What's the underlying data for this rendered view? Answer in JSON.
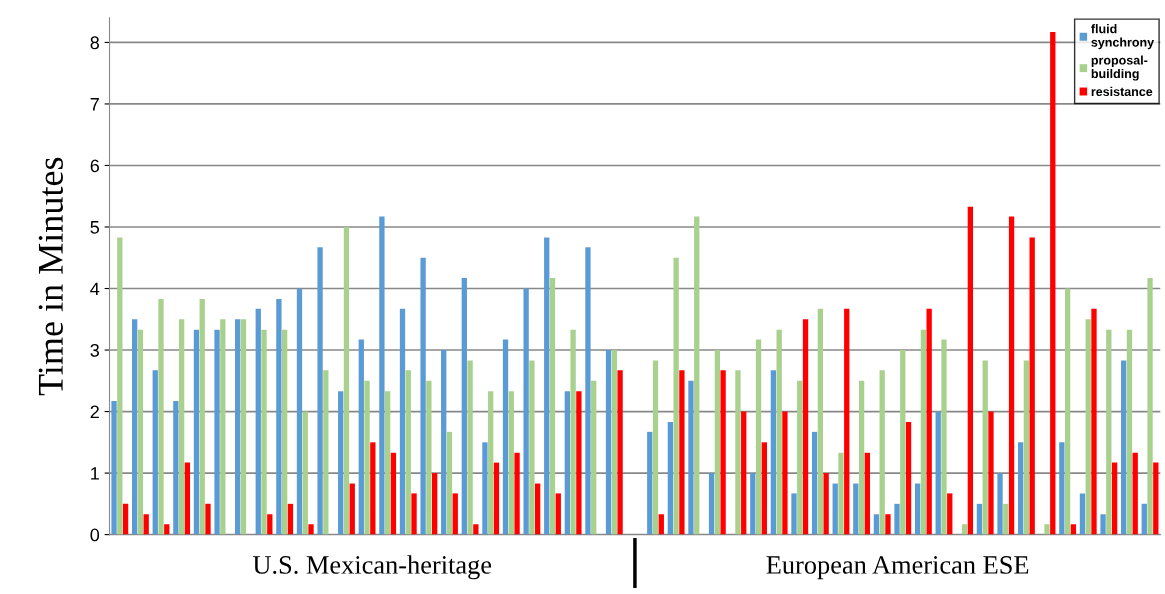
{
  "chart_data": {
    "type": "bar",
    "ylabel": "Time in Minutes",
    "categories": [
      null,
      null,
      null,
      null,
      null,
      null,
      null,
      null,
      null,
      null,
      null,
      null,
      null,
      null,
      null,
      null,
      null,
      null,
      null,
      null,
      null,
      null,
      null,
      null,
      null,
      null,
      null,
      null,
      null,
      null,
      null,
      null,
      null,
      null,
      null,
      null,
      null,
      null,
      null,
      null,
      null,
      null,
      null,
      null,
      null,
      null,
      null,
      null,
      null,
      null,
      null
    ],
    "series": [
      {
        "name": "fluid\nsynchrony",
        "color": "#5b9bd5",
        "values": [
          2.17,
          3.5,
          2.67,
          2.17,
          3.33,
          3.33,
          3.5,
          3.67,
          3.83,
          4.0,
          4.67,
          2.33,
          3.17,
          5.17,
          3.67,
          4.5,
          3.0,
          4.17,
          1.5,
          3.17,
          4.0,
          4.83,
          2.33,
          4.67,
          3.0,
          null,
          1.67,
          1.83,
          2.5,
          1.0,
          0,
          1.0,
          2.67,
          0.67,
          1.67,
          0.83,
          0.83,
          0.33,
          0.5,
          0.83,
          2.0,
          0,
          0.5,
          1.0,
          1.5,
          0,
          1.5,
          0.67,
          0.33,
          2.83,
          0.5
        ]
      },
      {
        "name": "proposal-\nbuilding",
        "color": "#a9d18e",
        "values": [
          4.83,
          3.33,
          3.83,
          3.5,
          3.83,
          3.5,
          3.5,
          3.33,
          3.33,
          2.0,
          2.67,
          5.0,
          2.5,
          2.33,
          2.67,
          2.5,
          1.67,
          2.83,
          2.33,
          2.33,
          2.83,
          4.17,
          3.33,
          2.5,
          3.0,
          null,
          2.83,
          4.5,
          5.17,
          3.0,
          2.67,
          3.17,
          3.33,
          2.5,
          3.67,
          1.33,
          2.5,
          2.67,
          3.0,
          3.33,
          3.17,
          0.17,
          2.83,
          0.5,
          2.83,
          0.17,
          4.0,
          3.5,
          3.33,
          3.33,
          4.17
        ]
      },
      {
        "name": "resistance",
        "color": "#ff0000",
        "values": [
          0.5,
          0.33,
          0.17,
          1.17,
          0.5,
          0,
          0,
          0.33,
          0.5,
          0.17,
          0,
          0.83,
          1.5,
          1.33,
          0.67,
          1.0,
          0.67,
          0.17,
          1.17,
          1.33,
          0.83,
          0.67,
          2.33,
          0,
          2.67,
          null,
          0.33,
          2.67,
          0,
          2.67,
          2.0,
          1.5,
          2.0,
          3.5,
          1.0,
          3.67,
          1.33,
          0.33,
          1.83,
          3.67,
          0.67,
          5.33,
          2.0,
          5.17,
          4.83,
          8.17,
          0.17,
          3.67,
          1.17,
          1.33,
          1.17
        ]
      }
    ],
    "ylim": [
      0,
      8.4
    ],
    "yticks": [
      0,
      1,
      2,
      3,
      4,
      5,
      6,
      7,
      8
    ],
    "grid": "y",
    "legend": "top right",
    "annotations": [
      "U.S. Mexican-heritage",
      "European American ESE"
    ]
  }
}
